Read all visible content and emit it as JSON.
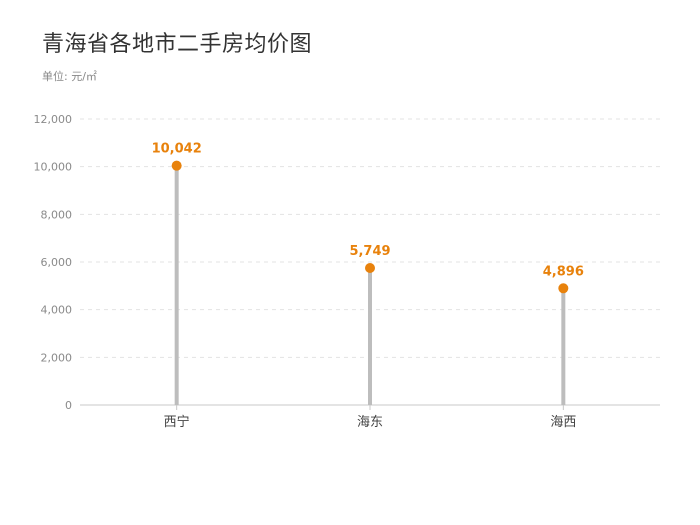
{
  "title": "青海省各地市二手房均价图",
  "unit_label": "单位: 元/㎡",
  "colors": {
    "marker": "#e8820c",
    "stem": "#bdbdbd",
    "grid": "#e3e3e3",
    "axis": "#c8c8c8"
  },
  "chart_data": {
    "type": "bar",
    "style": "lollipop",
    "categories": [
      "西宁",
      "海东",
      "海西"
    ],
    "values": [
      10042,
      5749,
      4896
    ],
    "value_labels": [
      "10,042",
      "5,749",
      "4,896"
    ],
    "title": "青海省各地市二手房均价图",
    "ylabel": "单位: 元/㎡",
    "xlabel": "",
    "ylim": [
      0,
      12000
    ],
    "yticks": [
      0,
      2000,
      4000,
      6000,
      8000,
      10000,
      12000
    ],
    "ytick_labels": [
      "0",
      "2,000",
      "4,000",
      "6,000",
      "8,000",
      "10,000",
      "12,000"
    ],
    "grid": "horizontal dashed",
    "legend": "none"
  }
}
